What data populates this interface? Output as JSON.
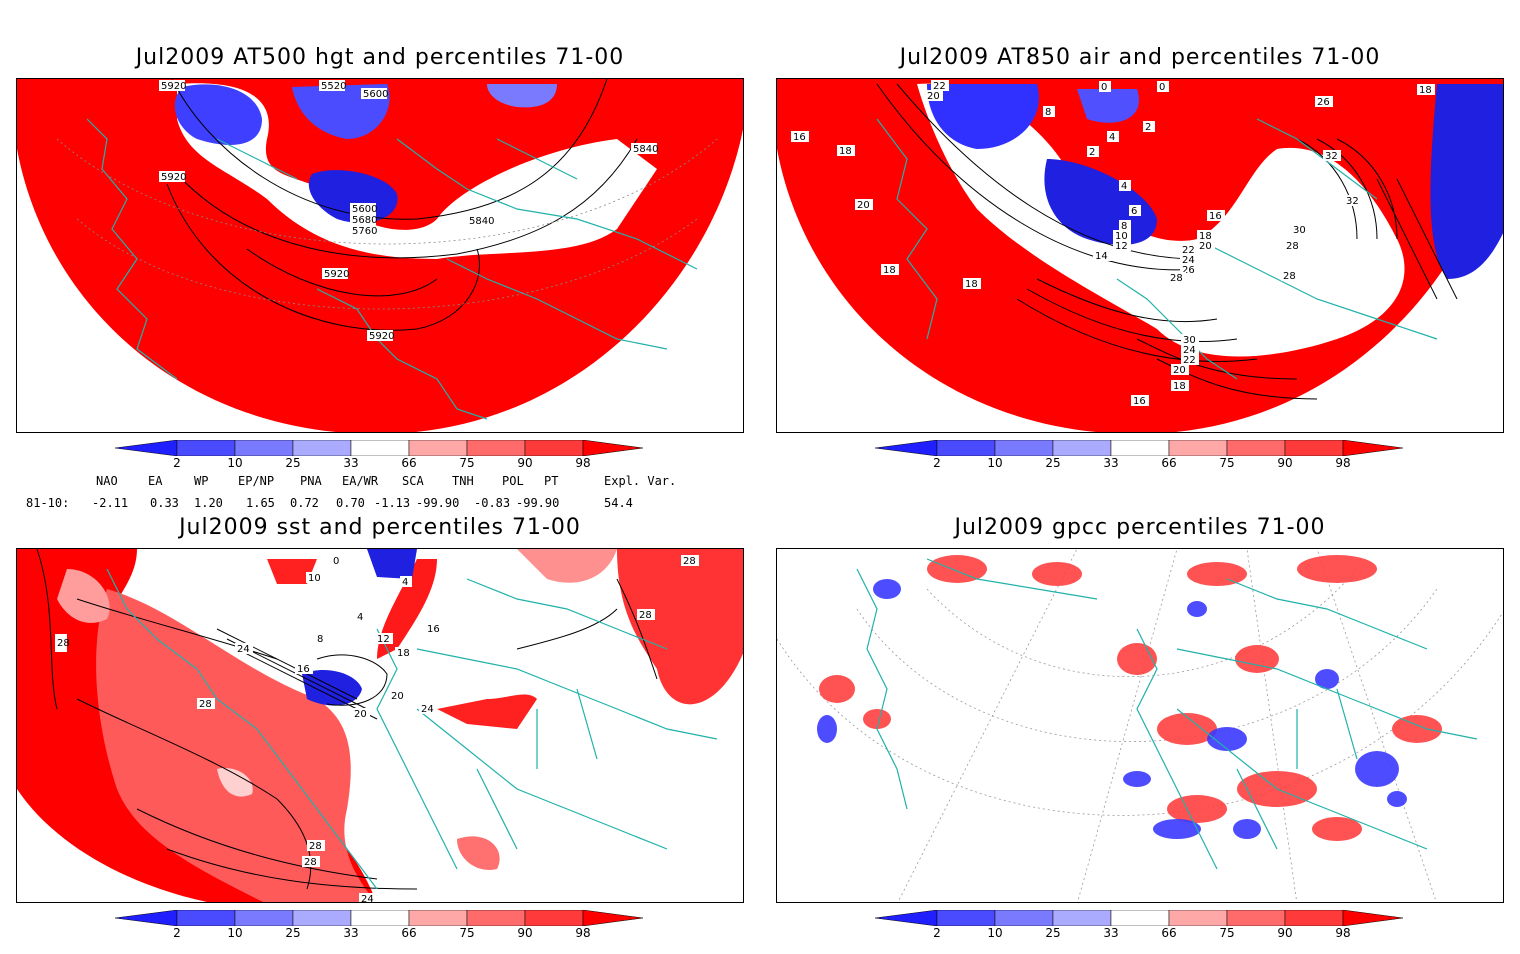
{
  "panels": [
    {
      "title": "Jul2009 AT500 hgt and percentiles 71-00",
      "contour_labels": [
        "5920",
        "5520",
        "5600",
        "5840",
        "5920",
        "5600",
        "5680",
        "5760",
        "5840",
        "5920",
        "5920"
      ]
    },
    {
      "title": "Jul2009 AT850 air and percentiles 71-00",
      "contour_labels": [
        "22",
        "20",
        "16",
        "18",
        "20",
        "18",
        "0",
        "0",
        "4",
        "2",
        "8",
        "2",
        "4",
        "6",
        "8",
        "10",
        "12",
        "14",
        "16",
        "18",
        "20",
        "22",
        "24",
        "26",
        "28",
        "30",
        "26",
        "18",
        "32",
        "32",
        "30",
        "28",
        "28",
        "24",
        "22",
        "20",
        "18",
        "16",
        "18"
      ]
    },
    {
      "title": "Jul2009 sst and percentiles 71-00",
      "contour_labels": [
        "28",
        "0",
        "10",
        "4",
        "4",
        "8",
        "12",
        "24",
        "16",
        "20",
        "20",
        "24",
        "28",
        "28",
        "28",
        "28",
        "28",
        "16",
        "18",
        "24"
      ]
    },
    {
      "title": "Jul2009 gpcc percentiles 71-00",
      "contour_labels": []
    }
  ],
  "colorbar": {
    "labels": [
      "2",
      "10",
      "25",
      "33",
      "66",
      "75",
      "90",
      "98"
    ],
    "colors": [
      "#1f1fff",
      "#4a4aff",
      "#7a7aff",
      "#aaaaff",
      "#ffffff",
      "#ffa8a8",
      "#ff6a6a",
      "#ff3a3a",
      "#ff0000"
    ]
  },
  "indices": {
    "headers": [
      "NAO",
      "EA",
      "WP",
      "EP/NP",
      "PNA",
      "EA/WR",
      "SCA",
      "TNH",
      "POL",
      "PT",
      "Expl. Var."
    ],
    "row_label": "81-10:",
    "values": [
      "-2.11",
      "0.33",
      "1.20",
      "1.65",
      "0.72",
      "0.70",
      "-1.13",
      "-99.90",
      "-0.83",
      "-99.90",
      "54.4"
    ]
  }
}
